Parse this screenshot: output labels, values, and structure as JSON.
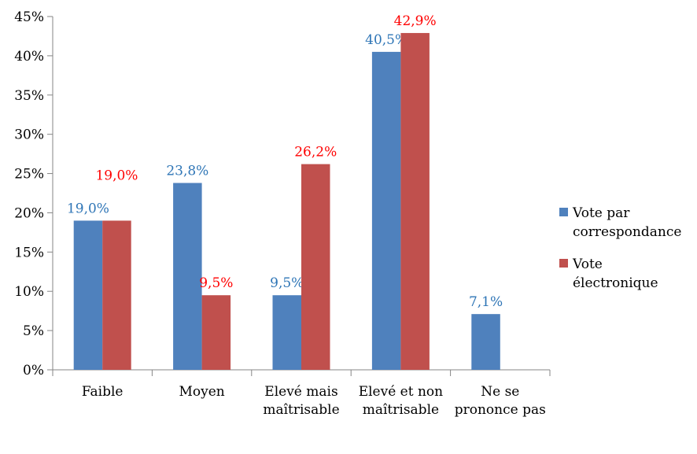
{
  "chart_data": {
    "type": "bar",
    "categories": [
      [
        "Faible"
      ],
      [
        "Moyen"
      ],
      [
        "Elevé mais",
        "maîtrisable"
      ],
      [
        "Elevé et non",
        "maîtrisable"
      ],
      [
        "Ne se",
        "prononce pas"
      ]
    ],
    "series": [
      {
        "name": "Vote par correspondance",
        "legend_lines": [
          "Vote par",
          "correspondance"
        ],
        "values": [
          19.0,
          23.8,
          9.5,
          40.5,
          7.1
        ],
        "labels": [
          "19,0%",
          "23,8%",
          "9,5%",
          "40,5%",
          "7,1%"
        ],
        "color": "#4F81BD",
        "label_color": "#2E75B6"
      },
      {
        "name": "Vote électronique",
        "legend_lines": [
          "Vote",
          "électronique"
        ],
        "values": [
          19.0,
          9.5,
          26.2,
          42.9,
          null
        ],
        "labels": [
          "19,0%",
          "9,5%",
          "26,2%",
          "42,9%",
          null
        ],
        "color": "#C0504D",
        "label_color": "#FF0000"
      }
    ],
    "yticks": [
      "0%",
      "5%",
      "10%",
      "15%",
      "20%",
      "25%",
      "30%",
      "35%",
      "40%",
      "45%"
    ],
    "ylim": [
      0,
      45
    ],
    "ystep": 5,
    "grid": false,
    "legend": "right",
    "title": "",
    "xlabel": "",
    "ylabel": ""
  }
}
